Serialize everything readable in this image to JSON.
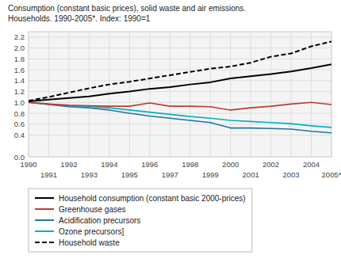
{
  "chart_data": {
    "type": "line",
    "title": "Consumption (constant basic prices), solid waste and air emissions.\nHouseholds. 1990-2005*. Index: 1990=1",
    "x": [
      1990,
      1991,
      1992,
      1993,
      1994,
      1995,
      1996,
      1997,
      1998,
      1999,
      2000,
      2001,
      2002,
      2003,
      2004,
      2005
    ],
    "series": [
      {
        "name": "Household consumption (constant basic 2000-prices)",
        "color": "#000000",
        "line_style": "solid",
        "values": [
          1.02,
          1.05,
          1.08,
          1.11,
          1.16,
          1.2,
          1.25,
          1.28,
          1.33,
          1.37,
          1.44,
          1.48,
          1.52,
          1.57,
          1.63,
          1.7
        ]
      },
      {
        "name": "Greenhouse gases",
        "color": "#c0392b",
        "line_style": "solid",
        "values": [
          1.0,
          0.97,
          0.95,
          0.94,
          0.93,
          0.93,
          0.99,
          0.93,
          0.93,
          0.92,
          0.86,
          0.9,
          0.93,
          0.97,
          1.0,
          0.96
        ]
      },
      {
        "name": "Acidification precursors",
        "color": "#2472a0",
        "line_style": "solid",
        "values": [
          1.0,
          0.96,
          0.92,
          0.9,
          0.86,
          0.8,
          0.75,
          0.71,
          0.67,
          0.63,
          0.53,
          0.53,
          0.52,
          0.51,
          0.47,
          0.44
        ]
      },
      {
        "name": "Ozone precursors]",
        "color": "#00b0c0",
        "line_style": "solid",
        "values": [
          1.0,
          0.97,
          0.94,
          0.93,
          0.9,
          0.86,
          0.82,
          0.78,
          0.74,
          0.71,
          0.67,
          0.65,
          0.63,
          0.61,
          0.57,
          0.54
        ]
      },
      {
        "name": "Household waste",
        "color": "#000000",
        "line_style": "dashed",
        "values": [
          1.03,
          1.1,
          1.18,
          1.26,
          1.33,
          1.38,
          1.44,
          1.5,
          1.56,
          1.62,
          1.66,
          1.73,
          1.84,
          1.9,
          2.03,
          2.12
        ]
      }
    ],
    "xlim": [
      1990,
      2005
    ],
    "xticks": [
      1990,
      1991,
      1992,
      1993,
      1994,
      1995,
      1996,
      1997,
      1998,
      1999,
      2000,
      2001,
      2002,
      2003,
      2004,
      {
        "value": 2005,
        "label": "2005*"
      }
    ],
    "ylim": [
      0,
      2.3
    ],
    "yticks": [
      {
        "value": 0,
        "label": "0.0"
      },
      0.4,
      0.6,
      0.8,
      {
        "value": 1,
        "label": "1.0"
      },
      1.2,
      1.4,
      1.6,
      1.8,
      {
        "value": 2,
        "label": "2.0"
      },
      2.2
    ],
    "grid": true,
    "legend": "bottom"
  }
}
